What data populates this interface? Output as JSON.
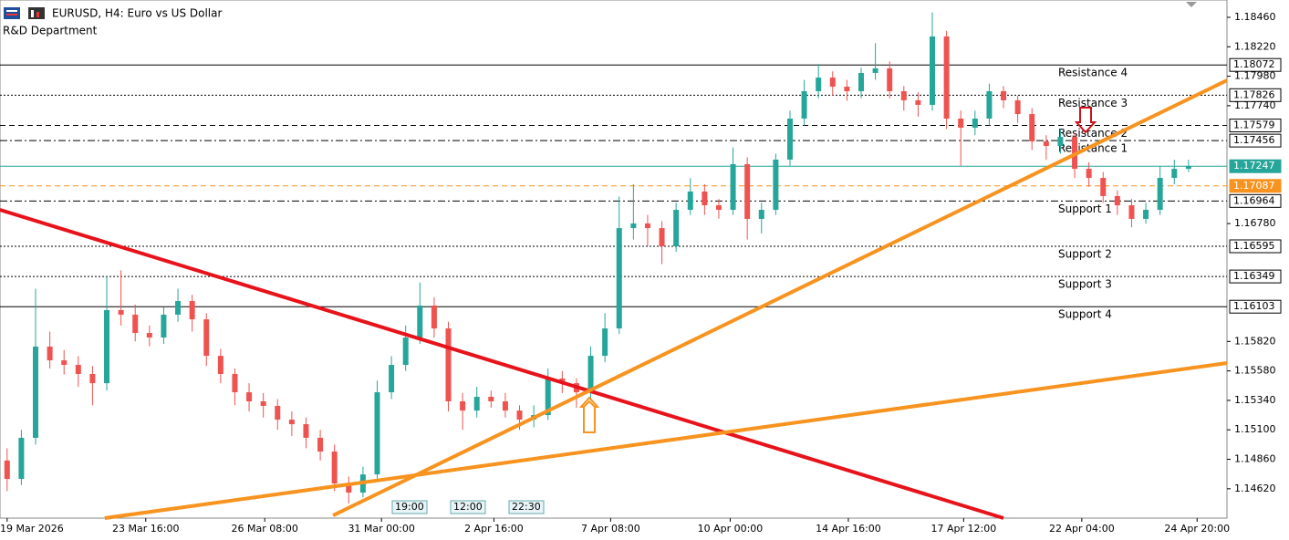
{
  "chart_data": {
    "type": "candlestick",
    "title": "EURUSD, H4:  Euro vs US Dollar",
    "subtitle": "R&D Department",
    "bull_color": "#26a69a",
    "bear_color": "#ef5350",
    "xlim": [
      -0.5,
      85.7
    ],
    "xticks": [
      {
        "value": 0,
        "label": "19 Mar 2026"
      },
      {
        "value": 9.74,
        "label": "23 Mar 16:00"
      },
      {
        "value": 18.1,
        "label": "26 Mar 08:00"
      },
      {
        "value": 26.3,
        "label": "31 Mar 00:00"
      },
      {
        "value": 34.2,
        "label": "2 Apr 16:00"
      },
      {
        "value": 42.4,
        "label": "7 Apr 08:00"
      },
      {
        "value": 50.8,
        "label": "10 Apr 00:00"
      },
      {
        "value": 59.1,
        "label": "14 Apr 16:00"
      },
      {
        "value": 67.2,
        "label": "17 Apr 12:00"
      },
      {
        "value": 75.5,
        "label": "22 Apr 04:00"
      },
      {
        "value": 83.6,
        "label": "24 Apr 20:00"
      }
    ],
    "ylim": [
      1.14381,
      1.18601
    ],
    "yticks": [
      {
        "value": 1.1846,
        "label": "1.18460"
      },
      {
        "value": 1.1822,
        "label": "1.18220"
      },
      {
        "value": 1.1798,
        "label": "1.17980"
      },
      {
        "value": 1.1774,
        "label": "1.17740"
      },
      {
        "value": 1.1678,
        "label": "1.16780"
      },
      {
        "value": 1.1582,
        "label": "1.15820"
      },
      {
        "value": 1.1558,
        "label": "1.15580"
      },
      {
        "value": 1.1534,
        "label": "1.15340"
      },
      {
        "value": 1.151,
        "label": "1.15100"
      },
      {
        "value": 1.1486,
        "label": "1.14860"
      },
      {
        "value": 1.1462,
        "label": "1.14620"
      }
    ],
    "ohlc": [
      [
        1.1485,
        1.1495,
        1.146,
        1.147
      ],
      [
        1.147,
        1.151,
        1.1465,
        1.15035
      ],
      [
        1.15035,
        1.1625,
        1.1498,
        1.15778
      ],
      [
        1.15778,
        1.159,
        1.156,
        1.15666
      ],
      [
        1.15666,
        1.1575,
        1.1555,
        1.15629
      ],
      [
        1.15629,
        1.157,
        1.1545,
        1.15555
      ],
      [
        1.15555,
        1.1562,
        1.153,
        1.1548
      ],
      [
        1.1548,
        1.1635,
        1.1542,
        1.16075
      ],
      [
        1.16075,
        1.164,
        1.1595,
        1.16038
      ],
      [
        1.16038,
        1.1612,
        1.1582,
        1.15889
      ],
      [
        1.15889,
        1.1595,
        1.1578,
        1.15852
      ],
      [
        1.15852,
        1.161,
        1.158,
        1.16038
      ],
      [
        1.16038,
        1.1625,
        1.1598,
        1.16149
      ],
      [
        1.16149,
        1.162,
        1.159,
        1.16
      ],
      [
        1.16,
        1.1605,
        1.1562,
        1.15703
      ],
      [
        1.15703,
        1.1576,
        1.1548,
        1.15555
      ],
      [
        1.15555,
        1.156,
        1.153,
        1.15406
      ],
      [
        1.15406,
        1.1548,
        1.1525,
        1.15332
      ],
      [
        1.15332,
        1.154,
        1.152,
        1.15295
      ],
      [
        1.15295,
        1.1535,
        1.151,
        1.15183
      ],
      [
        1.15183,
        1.1525,
        1.1505,
        1.15146
      ],
      [
        1.15146,
        1.152,
        1.1495,
        1.15035
      ],
      [
        1.15035,
        1.151,
        1.1485,
        1.14923
      ],
      [
        1.14923,
        1.1498,
        1.146,
        1.14663
      ],
      [
        1.14663,
        1.1472,
        1.145,
        1.14589
      ],
      [
        1.14589,
        1.148,
        1.1455,
        1.14737
      ],
      [
        1.14737,
        1.155,
        1.147,
        1.15406
      ],
      [
        1.15406,
        1.157,
        1.1535,
        1.15629
      ],
      [
        1.15629,
        1.1595,
        1.1558,
        1.15852
      ],
      [
        1.15852,
        1.163,
        1.158,
        1.16112
      ],
      [
        1.16112,
        1.1618,
        1.1585,
        1.15926
      ],
      [
        1.15926,
        1.1598,
        1.1525,
        1.15332
      ],
      [
        1.15332,
        1.154,
        1.151,
        1.15257
      ],
      [
        1.15257,
        1.1545,
        1.152,
        1.15369
      ],
      [
        1.15369,
        1.1542,
        1.1528,
        1.15332
      ],
      [
        1.15332,
        1.154,
        1.152,
        1.15257
      ],
      [
        1.15257,
        1.153,
        1.151,
        1.15183
      ],
      [
        1.15183,
        1.153,
        1.1512,
        1.1522
      ],
      [
        1.1522,
        1.156,
        1.1518,
        1.15518
      ],
      [
        1.15518,
        1.1558,
        1.154,
        1.1548
      ],
      [
        1.1548,
        1.1552,
        1.1528,
        1.15406
      ],
      [
        1.15406,
        1.1578,
        1.1535,
        1.15703
      ],
      [
        1.15703,
        1.1605,
        1.1565,
        1.15926
      ],
      [
        1.15926,
        1.17,
        1.1588,
        1.16743
      ],
      [
        1.16743,
        1.171,
        1.1665,
        1.16781
      ],
      [
        1.16781,
        1.1685,
        1.166,
        1.16743
      ],
      [
        1.16743,
        1.168,
        1.1645,
        1.16595
      ],
      [
        1.16595,
        1.1695,
        1.1655,
        1.16892
      ],
      [
        1.16892,
        1.1715,
        1.1685,
        1.17041
      ],
      [
        1.17041,
        1.171,
        1.1685,
        1.16929
      ],
      [
        1.16929,
        1.1698,
        1.1682,
        1.16892
      ],
      [
        1.16892,
        1.174,
        1.1685,
        1.17264
      ],
      [
        1.17264,
        1.1732,
        1.1665,
        1.16818
      ],
      [
        1.16818,
        1.1695,
        1.167,
        1.16892
      ],
      [
        1.16892,
        1.1735,
        1.1685,
        1.17301
      ],
      [
        1.17301,
        1.177,
        1.1725,
        1.17635
      ],
      [
        1.17635,
        1.1795,
        1.1758,
        1.17858
      ],
      [
        1.17858,
        1.1808,
        1.178,
        1.17969
      ],
      [
        1.17969,
        1.1802,
        1.1782,
        1.17895
      ],
      [
        1.17895,
        1.1795,
        1.1778,
        1.17858
      ],
      [
        1.17858,
        1.1805,
        1.178,
        1.18007
      ],
      [
        1.18007,
        1.1825,
        1.1795,
        1.18044
      ],
      [
        1.18044,
        1.181,
        1.178,
        1.17858
      ],
      [
        1.17858,
        1.179,
        1.177,
        1.17784
      ],
      [
        1.17784,
        1.1785,
        1.1765,
        1.17747
      ],
      [
        1.17747,
        1.185,
        1.177,
        1.18304
      ],
      [
        1.18304,
        1.1835,
        1.1755,
        1.17635
      ],
      [
        1.17635,
        1.177,
        1.1725,
        1.17561
      ],
      [
        1.17561,
        1.177,
        1.175,
        1.17635
      ],
      [
        1.17635,
        1.1792,
        1.1758,
        1.17858
      ],
      [
        1.17858,
        1.179,
        1.1772,
        1.17784
      ],
      [
        1.17784,
        1.1782,
        1.176,
        1.17672
      ],
      [
        1.17672,
        1.1772,
        1.1738,
        1.17449
      ],
      [
        1.17449,
        1.175,
        1.173,
        1.17412
      ],
      [
        1.17412,
        1.1755,
        1.1735,
        1.17486
      ],
      [
        1.17486,
        1.1752,
        1.1715,
        1.17226
      ],
      [
        1.17226,
        1.1728,
        1.1708,
        1.17152
      ],
      [
        1.17152,
        1.172,
        1.1695,
        1.17004
      ],
      [
        1.17004,
        1.1705,
        1.1685,
        1.16929
      ],
      [
        1.16929,
        1.1698,
        1.1675,
        1.16818
      ],
      [
        1.16818,
        1.1695,
        1.1678,
        1.16892
      ],
      [
        1.16892,
        1.1725,
        1.1685,
        1.17152
      ],
      [
        1.17152,
        1.173,
        1.171,
        1.17226
      ],
      [
        1.17226,
        1.173,
        1.172,
        1.17247
      ]
    ],
    "levels": [
      {
        "value": 1.18072,
        "name": "Resistance 4",
        "style": "solid",
        "color": "#000000"
      },
      {
        "value": 1.17826,
        "name": "Resistance 3",
        "style": "dotted",
        "color": "#000000"
      },
      {
        "value": 1.17579,
        "name": "Resistance 2",
        "style": "dashed",
        "color": "#000000"
      },
      {
        "value": 1.17456,
        "name": "Resistance 1",
        "style": "dashdot",
        "color": "#000000"
      },
      {
        "value": 1.17247,
        "style": "solid",
        "color": "#26a69a"
      },
      {
        "value": 1.17087,
        "style": "dashed",
        "color": "#f7931e"
      },
      {
        "value": 1.16964,
        "name": "Support 1",
        "style": "dashdot",
        "color": "#000000"
      },
      {
        "value": 1.16595,
        "name": "Support 2",
        "style": "dotted",
        "color": "#000000"
      },
      {
        "value": 1.16349,
        "name": "Support 3",
        "style": "dotted",
        "color": "#000000"
      },
      {
        "value": 1.16103,
        "name": "Support 4",
        "style": "solid",
        "color": "#000000"
      }
    ],
    "trendlines": [
      {
        "color": "#e8121b",
        "points": [
          [
            -0.51,
            1.16892
          ],
          [
            70,
            1.14381
          ]
        ]
      },
      {
        "color": "#f7931e",
        "points": [
          [
            22.9,
            1.14403
          ],
          [
            85.7,
            1.17947
          ]
        ]
      },
      {
        "color": "#f7931e",
        "points": [
          [
            6.86,
            1.14381
          ],
          [
            85.7,
            1.15644
          ]
        ]
      }
    ],
    "time_labels": [
      "19:00",
      "12:00",
      "22:30"
    ]
  }
}
